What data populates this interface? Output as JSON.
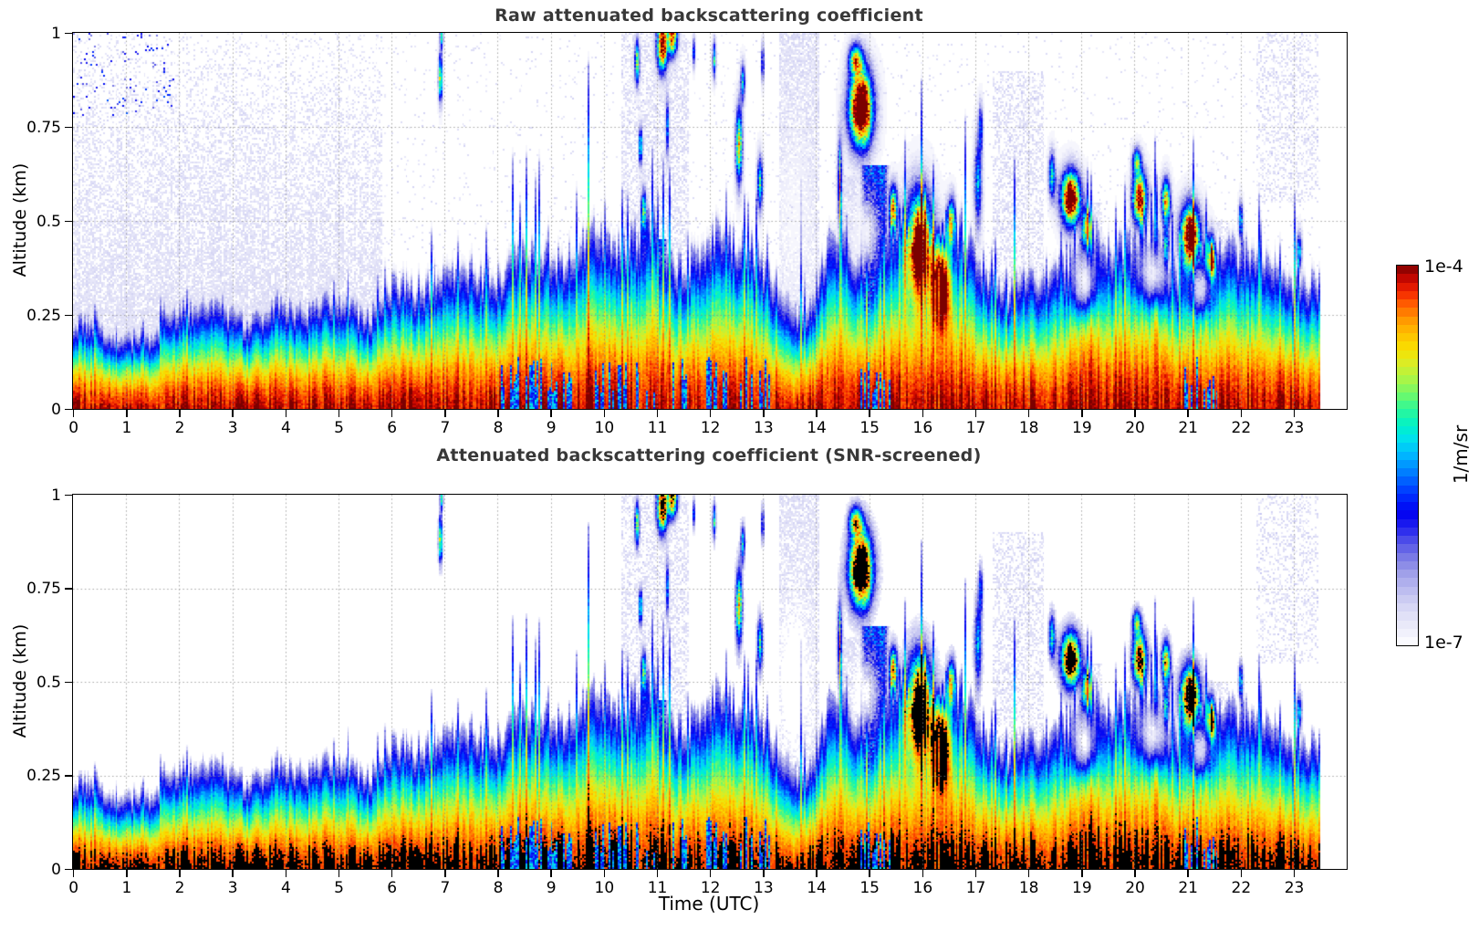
{
  "figure": {
    "panels": [
      {
        "title": "Raw attenuated backscattering coefficient",
        "noise_screened": false,
        "saturation_black": false
      },
      {
        "title": "Attenuated backscattering coefficient (SNR-screened)",
        "noise_screened": true,
        "saturation_black": true
      }
    ],
    "xlabel": "Time (UTC)",
    "ylabel": "Altitude (km)"
  },
  "axes": {
    "x_range": [
      0,
      24
    ],
    "x_ticks": [
      0,
      1,
      2,
      3,
      4,
      5,
      6,
      7,
      8,
      9,
      10,
      11,
      12,
      13,
      14,
      15,
      16,
      17,
      18,
      19,
      20,
      21,
      22,
      23
    ],
    "y_range": [
      0,
      1
    ],
    "y_ticks": [
      0,
      0.25,
      0.5,
      0.75,
      1
    ],
    "y_tick_labels": [
      "0",
      "0.25",
      "0.5",
      "0.75",
      "1"
    ],
    "grid_x": [
      1,
      2,
      3,
      4,
      5,
      6,
      7,
      8,
      9,
      10,
      11,
      12,
      13,
      14,
      15,
      16,
      17,
      18,
      19,
      20,
      21,
      22,
      23
    ],
    "grid_y": [
      0.25,
      0.5,
      0.75
    ],
    "data_end_hour": 23.5
  },
  "colorbar": {
    "max_label": "1e-4",
    "min_label": "1e-7",
    "units_label": "1/m/sr",
    "scale": "log",
    "bands": 45,
    "stops": [
      [
        0.0,
        "#ffffff"
      ],
      [
        0.03,
        "#f2f2fc"
      ],
      [
        0.07,
        "#e4e4f8"
      ],
      [
        0.11,
        "#d2d2f4"
      ],
      [
        0.15,
        "#babaef"
      ],
      [
        0.19,
        "#9f9fe9"
      ],
      [
        0.23,
        "#7d7de6"
      ],
      [
        0.27,
        "#5555e8"
      ],
      [
        0.31,
        "#2222ee"
      ],
      [
        0.35,
        "#0000f2"
      ],
      [
        0.4,
        "#0033ff"
      ],
      [
        0.45,
        "#0077ff"
      ],
      [
        0.5,
        "#00b4ff"
      ],
      [
        0.54,
        "#00e0f0"
      ],
      [
        0.58,
        "#00f2c8"
      ],
      [
        0.62,
        "#2cf79a"
      ],
      [
        0.66,
        "#6cf96c"
      ],
      [
        0.7,
        "#a8f548"
      ],
      [
        0.74,
        "#d8ee28"
      ],
      [
        0.78,
        "#f8e000"
      ],
      [
        0.82,
        "#ffc000"
      ],
      [
        0.86,
        "#ff9500"
      ],
      [
        0.9,
        "#ff5a00"
      ],
      [
        0.93,
        "#f42800"
      ],
      [
        0.96,
        "#cf0800"
      ],
      [
        1.0,
        "#7c0000"
      ]
    ],
    "saturated_color": "#000000"
  },
  "chart_data": {
    "type": "heatmap",
    "x_unit": "hours UTC",
    "y_unit": "km",
    "value_min": "1e-7",
    "value_max": "1e-4",
    "value_units": "1/m/sr",
    "bl_top_km": [
      [
        0,
        0.21
      ],
      [
        0.9,
        0.2
      ],
      [
        1.3,
        0.18
      ],
      [
        1.55,
        0.165
      ],
      [
        1.75,
        0.25
      ],
      [
        3.0,
        0.25
      ],
      [
        4.5,
        0.25
      ],
      [
        5.6,
        0.26
      ],
      [
        6.0,
        0.32
      ],
      [
        6.5,
        0.3
      ],
      [
        6.9,
        0.34
      ],
      [
        7.3,
        0.3
      ],
      [
        7.8,
        0.35
      ],
      [
        8.3,
        0.4
      ],
      [
        8.8,
        0.42
      ],
      [
        9.3,
        0.38
      ],
      [
        9.8,
        0.4
      ],
      [
        10.3,
        0.45
      ],
      [
        10.9,
        0.48
      ],
      [
        11.3,
        0.4
      ],
      [
        11.8,
        0.38
      ],
      [
        12.3,
        0.42
      ],
      [
        12.7,
        0.45
      ],
      [
        13.1,
        0.35
      ],
      [
        13.5,
        0.27
      ],
      [
        13.9,
        0.3
      ],
      [
        14.3,
        0.42
      ],
      [
        14.7,
        0.35
      ],
      [
        15.1,
        0.38
      ],
      [
        15.5,
        0.45
      ],
      [
        15.9,
        0.5
      ],
      [
        16.4,
        0.48
      ],
      [
        16.8,
        0.4
      ],
      [
        17.2,
        0.35
      ],
      [
        17.6,
        0.29
      ],
      [
        18.0,
        0.32
      ],
      [
        18.4,
        0.4
      ],
      [
        18.9,
        0.42
      ],
      [
        19.4,
        0.4
      ],
      [
        19.9,
        0.42
      ],
      [
        20.4,
        0.44
      ],
      [
        20.9,
        0.4
      ],
      [
        21.4,
        0.38
      ],
      [
        21.9,
        0.4
      ],
      [
        22.4,
        0.36
      ],
      [
        22.9,
        0.34
      ],
      [
        23.5,
        0.36
      ]
    ],
    "plume_amp": [
      [
        0,
        0.05
      ],
      [
        5.7,
        0.05
      ],
      [
        6.0,
        0.14
      ],
      [
        7.4,
        0.14
      ],
      [
        7.9,
        0.3
      ],
      [
        16.8,
        0.3
      ],
      [
        17.4,
        0.22
      ],
      [
        23.5,
        0.22
      ]
    ],
    "clouds": [
      [
        6.93,
        0.88,
        0.035,
        0.06,
        0.8
      ],
      [
        6.95,
        0.99,
        0.03,
        0.03,
        0.55
      ],
      [
        10.63,
        0.92,
        0.05,
        0.06,
        0.75
      ],
      [
        10.7,
        0.7,
        0.04,
        0.05,
        0.6
      ],
      [
        10.76,
        0.52,
        0.05,
        0.06,
        0.7
      ],
      [
        11.1,
        0.97,
        0.1,
        0.07,
        1.1
      ],
      [
        11.3,
        0.99,
        0.09,
        0.05,
        0.95
      ],
      [
        11.2,
        0.75,
        0.04,
        0.08,
        0.5
      ],
      [
        11.7,
        0.95,
        0.03,
        0.04,
        0.5
      ],
      [
        12.08,
        0.93,
        0.03,
        0.05,
        0.55
      ],
      [
        12.55,
        0.7,
        0.06,
        0.1,
        0.8
      ],
      [
        12.62,
        0.87,
        0.04,
        0.05,
        0.55
      ],
      [
        12.95,
        0.6,
        0.05,
        0.07,
        0.65
      ],
      [
        13.0,
        0.92,
        0.025,
        0.05,
        0.5
      ],
      [
        14.45,
        0.6,
        0.05,
        0.12,
        0.55
      ],
      [
        14.85,
        0.8,
        0.22,
        0.1,
        1.35
      ],
      [
        14.75,
        0.93,
        0.12,
        0.04,
        0.7
      ],
      [
        15.45,
        0.53,
        0.08,
        0.06,
        0.9
      ],
      [
        15.95,
        0.45,
        0.25,
        0.13,
        1.0
      ],
      [
        16.35,
        0.33,
        0.15,
        0.1,
        0.8
      ],
      [
        16.55,
        0.5,
        0.08,
        0.06,
        0.7
      ],
      [
        17.05,
        0.6,
        0.07,
        0.12,
        0.5
      ],
      [
        17.1,
        0.75,
        0.04,
        0.06,
        0.4
      ],
      [
        18.45,
        0.62,
        0.06,
        0.06,
        0.6
      ],
      [
        18.8,
        0.56,
        0.18,
        0.07,
        1.25
      ],
      [
        19.1,
        0.48,
        0.08,
        0.05,
        0.8
      ],
      [
        20.1,
        0.56,
        0.13,
        0.07,
        1.05
      ],
      [
        20.05,
        0.66,
        0.08,
        0.035,
        0.55
      ],
      [
        20.6,
        0.55,
        0.08,
        0.06,
        0.85
      ],
      [
        20.6,
        0.43,
        0.06,
        0.05,
        0.6
      ],
      [
        21.05,
        0.46,
        0.18,
        0.08,
        1.25
      ],
      [
        21.45,
        0.4,
        0.07,
        0.06,
        0.95
      ],
      [
        22.0,
        0.5,
        0.04,
        0.05,
        0.55
      ],
      [
        23.1,
        0.42,
        0.05,
        0.05,
        0.5
      ]
    ],
    "clear_holes": [
      [
        14.95,
        0.47,
        0.25,
        0.1,
        0.92
      ],
      [
        19.05,
        0.34,
        0.22,
        0.08,
        0.95
      ],
      [
        20.35,
        0.36,
        0.28,
        0.08,
        0.9
      ],
      [
        21.25,
        0.32,
        0.18,
        0.06,
        0.85
      ],
      [
        13.6,
        0.5,
        0.35,
        0.25,
        0.7
      ]
    ],
    "virga_columns": [
      [
        14.8,
        15.4,
        0.65,
        0.42
      ],
      [
        20.95,
        21.6,
        0.4,
        0.48
      ],
      [
        19.0,
        19.45,
        0.28,
        0.3
      ],
      [
        10.9,
        11.25,
        0.45,
        0.35
      ],
      [
        12.5,
        12.7,
        0.35,
        0.3
      ]
    ],
    "haze_columns": [
      [
        10.35,
        11.6,
        0.3,
        1.0,
        0.5
      ],
      [
        13.3,
        14.05,
        0.25,
        1.0,
        0.75
      ],
      [
        14.5,
        15.35,
        0.3,
        0.62,
        0.9
      ],
      [
        17.35,
        18.3,
        0.3,
        0.9,
        0.45
      ],
      [
        18.85,
        19.4,
        0.2,
        0.55,
        0.6
      ],
      [
        19.9,
        20.65,
        0.25,
        0.5,
        0.6
      ],
      [
        20.9,
        21.75,
        0.1,
        0.5,
        0.5
      ],
      [
        22.3,
        23.45,
        0.55,
        1.0,
        0.3
      ]
    ],
    "attenuated_gaps": [
      [
        8.05,
        9.4
      ],
      [
        9.85,
        10.95
      ],
      [
        11.3,
        11.55
      ],
      [
        11.95,
        12.4
      ],
      [
        12.55,
        13.15
      ],
      [
        14.8,
        15.4
      ],
      [
        20.95,
        21.6
      ]
    ],
    "raw_noise_region_end_hour": 5.85,
    "screen_threshold_norm": 0.045,
    "black_threshold_norm": 0.93
  }
}
